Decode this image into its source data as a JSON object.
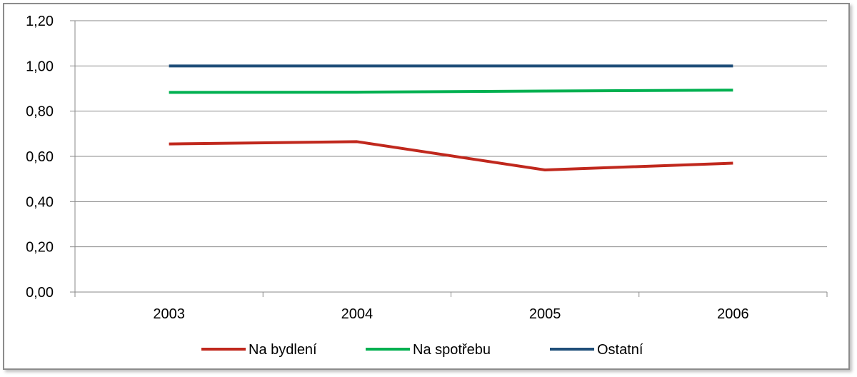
{
  "chart_data": {
    "type": "line",
    "categories": [
      "2003",
      "2004",
      "2005",
      "2006"
    ],
    "series": [
      {
        "name": "Na bydlení",
        "values": [
          0.655,
          0.665,
          0.54,
          0.57
        ],
        "color": "#c0281d"
      },
      {
        "name": "Na spotřebu",
        "values": [
          0.883,
          0.884,
          0.889,
          0.893
        ],
        "color": "#00b050"
      },
      {
        "name": "Ostatní",
        "values": [
          1.0,
          1.0,
          1.0,
          1.0
        ],
        "color": "#1f4e79"
      }
    ],
    "y_ticks": [
      "0,00",
      "0,20",
      "0,40",
      "0,60",
      "0,80",
      "1,00",
      "1,20"
    ],
    "ylim": [
      0,
      1.2
    ],
    "grid": true,
    "legend_position": "bottom"
  }
}
